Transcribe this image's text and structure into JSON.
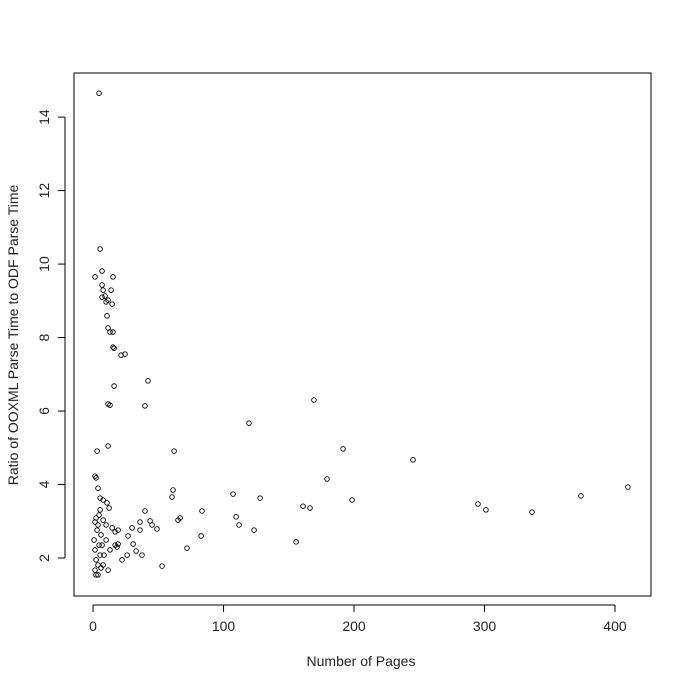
{
  "chart_data": {
    "type": "scatter",
    "x_label": "Number of Pages",
    "y_label": "Ratio of OOXML Parse Time to ODF Parse Time",
    "xlim": [
      -14.6,
      427.6
    ],
    "ylim": [
      0.966,
      15.2
    ],
    "xticks": [
      0,
      100,
      200,
      300,
      400
    ],
    "yticks": [
      2,
      4,
      6,
      8,
      10,
      12,
      14
    ],
    "color": "#000000",
    "x": [
      4.6,
      5.4,
      1.5,
      6.9,
      15.3,
      6.9,
      7.7,
      6.9,
      9.2,
      11.5,
      13.8,
      14.6,
      10.0,
      10.7,
      11.5,
      13.0,
      15.3,
      15.3,
      16.1,
      21.5,
      24.5,
      11.5,
      13.0,
      16.1,
      42.1,
      39.8,
      119.5,
      169.3,
      3.1,
      11.5,
      62.1,
      191.6,
      245.2,
      179.3,
      1.5,
      2.3,
      3.8,
      5.4,
      7.7,
      10.7,
      12.3,
      39.8,
      61.3,
      60.5,
      107.3,
      128.0,
      160.9,
      166.3,
      198.5,
      295.0,
      301.1,
      336.4,
      373.9,
      409.9,
      109.6,
      111.9,
      123.4,
      66.7,
      65.1,
      82.8,
      155.6,
      72.0,
      52.9,
      83.5,
      19.2,
      29.9,
      36.0,
      43.7,
      49.0,
      45.2,
      36.0,
      26.8,
      30.7,
      33.0,
      37.5,
      26.1,
      22.2,
      19.2,
      16.9,
      14.6,
      10.0,
      7.7,
      2.3,
      1.5,
      3.1,
      0.8,
      1.5,
      2.3,
      1.5,
      2.3,
      3.8,
      5.4,
      4.6,
      6.1,
      6.9,
      8.4,
      7.7,
      10.0,
      11.5,
      13.0,
      3.8,
      4.6,
      5.4,
      3.8,
      6.1,
      16.9,
      18.4
    ],
    "values": [
      14.65,
      10.41,
      9.65,
      9.81,
      9.65,
      9.43,
      9.29,
      9.1,
      9.13,
      9.02,
      9.29,
      8.91,
      8.97,
      8.59,
      8.26,
      8.15,
      8.15,
      7.74,
      7.71,
      7.52,
      7.55,
      6.19,
      6.16,
      6.68,
      6.82,
      6.14,
      5.67,
      6.3,
      4.91,
      5.05,
      4.91,
      4.97,
      4.67,
      4.15,
      4.23,
      4.18,
      3.9,
      3.63,
      3.58,
      3.5,
      3.36,
      3.28,
      3.85,
      3.66,
      3.74,
      3.63,
      3.41,
      3.36,
      3.58,
      3.47,
      3.31,
      3.25,
      3.69,
      3.93,
      3.12,
      2.9,
      2.76,
      3.09,
      3.03,
      2.6,
      2.44,
      2.27,
      1.78,
      3.28,
      2.76,
      2.82,
      2.98,
      3.01,
      2.79,
      2.9,
      2.76,
      2.6,
      2.38,
      2.19,
      2.08,
      2.08,
      1.95,
      2.38,
      2.71,
      2.82,
      2.9,
      3.03,
      3.09,
      2.98,
      2.76,
      2.49,
      2.22,
      1.95,
      1.67,
      1.54,
      1.81,
      2.08,
      2.35,
      2.63,
      2.35,
      2.08,
      1.81,
      2.49,
      1.67,
      2.22,
      2.9,
      3.17,
      3.31,
      1.54,
      1.73,
      2.35,
      2.3
    ]
  }
}
